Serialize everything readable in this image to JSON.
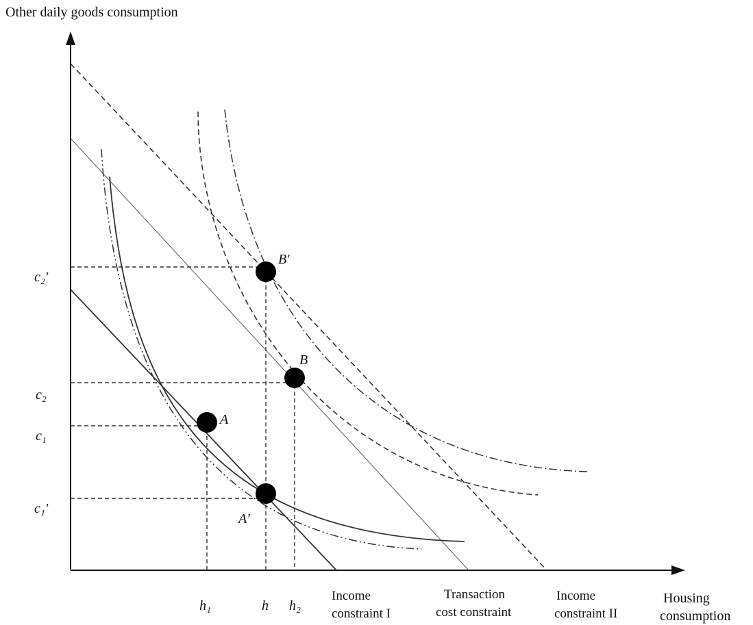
{
  "axes": {
    "y_title": "Other daily goods consumption",
    "x_title_line1": "Housing",
    "x_title_line2": "consumption"
  },
  "tick_labels": {
    "c2_prime": "c₂'",
    "c2": "c₂",
    "c1": "c₁",
    "c1_prime": "c₁'",
    "h1": "h₁",
    "h": "h",
    "h2": "h₂"
  },
  "points": {
    "A": "A",
    "A_prime": "A'",
    "B": "B",
    "B_prime": "B'"
  },
  "constraints": {
    "income_1_line1": "Income",
    "income_1_line2": "constraint I",
    "transaction_line1": "Transaction",
    "transaction_line2": "cost constraint",
    "income_2_line1": "Income",
    "income_2_line2": "constraint II"
  }
}
